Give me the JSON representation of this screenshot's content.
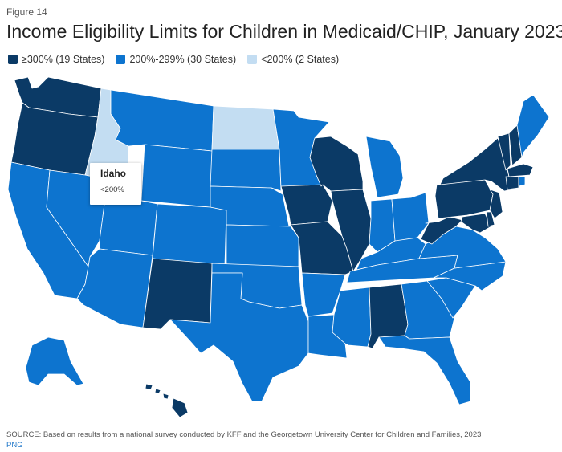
{
  "figure_label": "Figure 14",
  "title": "Income Eligibility Limits for Children in Medicaid/CHIP, January 2023",
  "legend": [
    {
      "label": "≥300% (19 States)",
      "color": "#0b3a66"
    },
    {
      "label": "200%-299% (30 States)",
      "color": "#0d74cf"
    },
    {
      "label": "<200% (2 States)",
      "color": "#c3ddf2"
    }
  ],
  "tooltip": {
    "state": "Idaho",
    "value": "<200%"
  },
  "source": "SOURCE: Based on results from a national survey conducted by KFF and the Georgetown University Center for Children and Families, 2023",
  "download_link": "PNG"
}
